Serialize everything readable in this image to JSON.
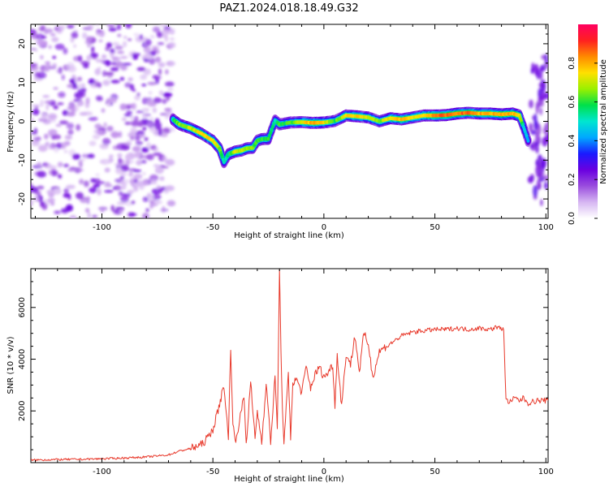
{
  "figure_title": "PAZ1.2024.018.18.49.G32",
  "chart_data": [
    {
      "type": "heatmap",
      "title": "",
      "xlabel": "Height of straight line (km)",
      "ylabel": "Frequency (Hz)",
      "xlim": [
        -132,
        101
      ],
      "ylim": [
        -25,
        25
      ],
      "x_ticks": [
        -100,
        -50,
        0,
        50,
        100
      ],
      "y_ticks": [
        -20,
        -10,
        0,
        10,
        20
      ],
      "colorbar": {
        "label": "Normalized spectral amplitude",
        "range": [
          0.0,
          1.0
        ],
        "ticks": [
          0.0,
          0.2,
          0.4,
          0.6,
          0.8
        ],
        "colormap": [
          "#ffffff",
          "#d6b6f2",
          "#9a4dde",
          "#6a00e0",
          "#1a1aff",
          "#00a8ff",
          "#00e6d0",
          "#00e04a",
          "#9af000",
          "#ffe000",
          "#ff8a00",
          "#ff2020",
          "#ff0060"
        ]
      },
      "noise_region_x": [
        -132,
        -68
      ],
      "ridge": {
        "x": [
          -68,
          -65,
          -60,
          -55,
          -50,
          -47,
          -45,
          -43,
          -40,
          -37,
          -35,
          -32,
          -30,
          -28,
          -25,
          -22,
          -20,
          -15,
          -10,
          -5,
          0,
          5,
          10,
          15,
          20,
          25,
          30,
          35,
          40,
          45,
          50,
          55,
          60,
          65,
          70,
          75,
          80,
          85,
          88,
          90,
          92
        ],
        "freq": [
          0.5,
          -0.8,
          -1.8,
          -3.2,
          -5.0,
          -7.0,
          -10.5,
          -8.5,
          -7.8,
          -7.5,
          -7.0,
          -6.8,
          -5.0,
          -4.6,
          -4.5,
          0.2,
          -0.8,
          -0.3,
          -0.2,
          -0.4,
          -0.3,
          0.1,
          1.5,
          1.3,
          1.0,
          0.0,
          0.8,
          0.5,
          1.0,
          1.5,
          1.5,
          1.6,
          2.0,
          2.2,
          2.0,
          2.0,
          1.8,
          2.0,
          1.5,
          -1.5,
          -5.0
        ],
        "amplitude": [
          0.55,
          0.65,
          0.7,
          0.75,
          0.75,
          0.65,
          0.5,
          0.55,
          0.7,
          0.7,
          0.65,
          0.65,
          0.6,
          0.6,
          0.6,
          0.5,
          0.6,
          0.6,
          0.75,
          0.8,
          0.75,
          0.6,
          0.75,
          0.75,
          0.7,
          0.65,
          0.75,
          0.8,
          0.75,
          0.75,
          0.85,
          0.85,
          0.85,
          0.85,
          0.8,
          0.8,
          0.8,
          0.8,
          0.75,
          0.5,
          0.4
        ]
      }
    },
    {
      "type": "line",
      "title": "",
      "xlabel": "Height of straight line (km)",
      "ylabel": "SNR (10 * v/v)",
      "xlim": [
        -132,
        101
      ],
      "ylim": [
        0,
        7500
      ],
      "x_ticks": [
        -100,
        -50,
        0,
        50,
        100
      ],
      "y_ticks": [
        2000,
        4000,
        6000
      ],
      "line_color": "#e8392b",
      "x": [
        -132,
        -120,
        -110,
        -100,
        -90,
        -80,
        -70,
        -65,
        -60,
        -55,
        -52,
        -50,
        -48,
        -45,
        -43,
        -42,
        -41,
        -40,
        -38,
        -36,
        -35,
        -33,
        -31,
        -30,
        -28,
        -26,
        -24,
        -22,
        -21,
        -20,
        -19,
        -18,
        -16,
        -15,
        -14,
        -12,
        -10,
        -8,
        -6,
        -4,
        -2,
        0,
        2,
        4,
        5,
        6,
        8,
        10,
        12,
        14,
        16,
        18,
        20,
        22,
        25,
        28,
        30,
        35,
        40,
        45,
        50,
        55,
        60,
        65,
        70,
        75,
        78,
        80,
        81,
        82,
        84,
        86,
        88,
        90,
        92,
        94,
        96,
        98,
        101
      ],
      "y": [
        100,
        120,
        130,
        150,
        180,
        220,
        300,
        450,
        550,
        700,
        1000,
        1300,
        1900,
        3000,
        900,
        4500,
        1500,
        800,
        1600,
        2600,
        700,
        3100,
        900,
        2000,
        800,
        3100,
        800,
        3300,
        1300,
        7400,
        3000,
        700,
        3400,
        1000,
        3100,
        3200,
        2700,
        3700,
        2900,
        3400,
        3700,
        3300,
        3500,
        3800,
        2200,
        4200,
        2200,
        4200,
        3800,
        4900,
        3500,
        5000,
        4600,
        3300,
        4300,
        4500,
        4600,
        4900,
        5050,
        5100,
        5150,
        5150,
        5200,
        5150,
        5200,
        5150,
        5250,
        5150,
        5250,
        2400,
        2350,
        2500,
        2400,
        2500,
        2300,
        2350,
        2400,
        2400,
        2400
      ]
    }
  ]
}
